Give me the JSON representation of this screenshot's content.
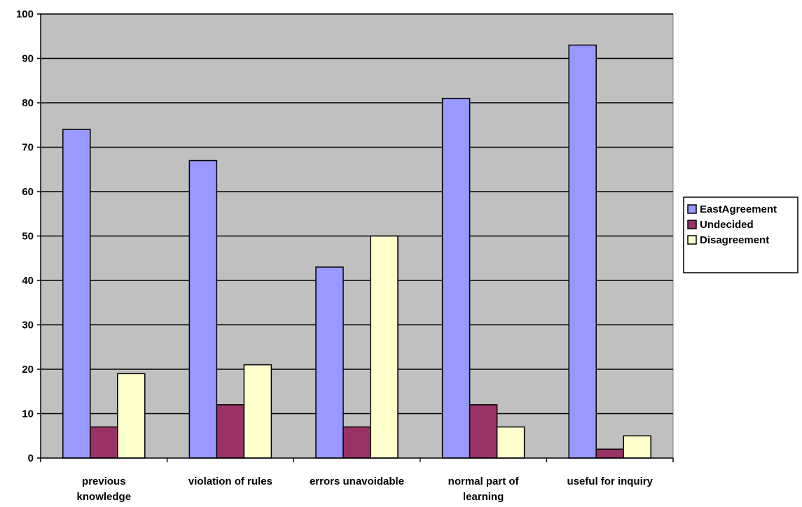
{
  "chart_data": {
    "type": "bar",
    "title": "",
    "xlabel": "",
    "ylabel": "",
    "categories": [
      [
        "previous",
        "knowledge"
      ],
      [
        "violation of rules"
      ],
      [
        "errors unavoidable"
      ],
      [
        "normal part of",
        "learning"
      ],
      [
        "useful for inquiry"
      ]
    ],
    "series": [
      {
        "name": "EastAgreement",
        "color": "#9999ff",
        "values": [
          74,
          67,
          43,
          81,
          93
        ]
      },
      {
        "name": "Undecided",
        "color": "#993366",
        "values": [
          7,
          12,
          7,
          12,
          2
        ]
      },
      {
        "name": "Disagreement",
        "color": "#ffffcc",
        "values": [
          19,
          21,
          50,
          7,
          5
        ]
      }
    ],
    "ylim": [
      0,
      100
    ],
    "yticks": [
      0,
      10,
      20,
      30,
      40,
      50,
      60,
      70,
      80,
      90,
      100
    ],
    "grid": true,
    "plot_background": "#c0c0c0",
    "legend": "right"
  }
}
